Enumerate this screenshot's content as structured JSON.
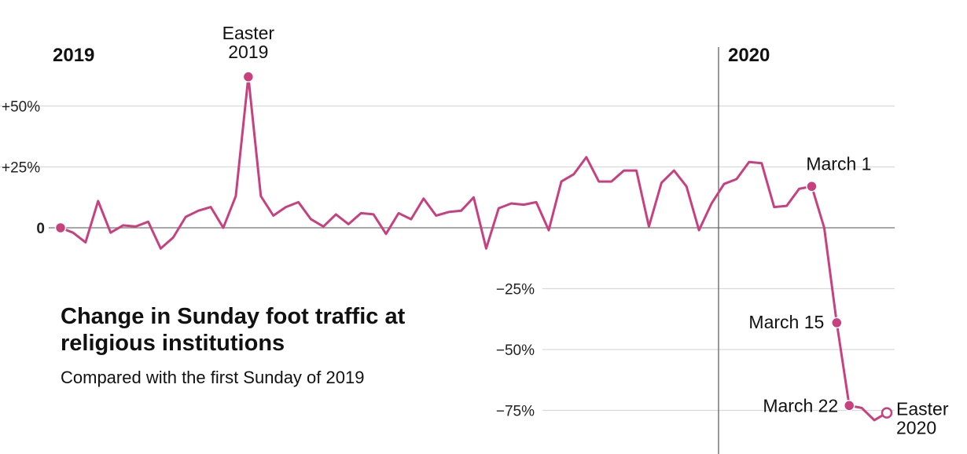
{
  "chart_data": {
    "type": "line",
    "title": "Change in Sunday foot traffic at religious institutions",
    "subtitle": "Compared with the first Sunday of 2019",
    "xlabel": "",
    "ylabel": "",
    "ylim": [
      -90,
      70
    ],
    "y_ticks": [
      {
        "value": 50,
        "label": "+50%"
      },
      {
        "value": 25,
        "label": "+25%"
      },
      {
        "value": 0,
        "label": "0"
      },
      {
        "value": -25,
        "label": "−25%"
      },
      {
        "value": -50,
        "label": "−50%"
      },
      {
        "value": -75,
        "label": "−75%"
      }
    ],
    "year_labels": [
      {
        "index": 0,
        "label": "2019"
      },
      {
        "index": 53,
        "label": "2020"
      }
    ],
    "year_divider_index": 53,
    "series": [
      {
        "name": "Sunday foot traffic change (%)",
        "color": "#c8407e",
        "values": [
          0,
          -2,
          -6,
          11,
          -2,
          1,
          0.5,
          2.5,
          -8.5,
          -4,
          4.5,
          7,
          8.5,
          0,
          13,
          62,
          13,
          5,
          8.5,
          10.5,
          3.5,
          0.5,
          5.5,
          1.5,
          6,
          5.5,
          -2.5,
          6,
          3.5,
          12,
          5,
          6.5,
          7,
          12.5,
          -8.5,
          8,
          10,
          9.5,
          10.5,
          -1,
          19,
          22,
          29,
          19,
          19,
          23.5,
          23.5,
          0.5,
          18.5,
          23.5,
          17,
          -1,
          10,
          18,
          20,
          27,
          26.5,
          8.5,
          9,
          16,
          17,
          0,
          -39,
          -73,
          -74,
          -79,
          -76
        ]
      }
    ],
    "annotations": [
      {
        "index": 15,
        "lines": [
          "Easter",
          "2019"
        ],
        "marker": "filled"
      },
      {
        "index": 60,
        "lines": [
          "March 1"
        ],
        "marker": "filled"
      },
      {
        "index": 62,
        "lines": [
          "March 15"
        ],
        "marker": "filled"
      },
      {
        "index": 63,
        "lines": [
          "March 22"
        ],
        "marker": "filled"
      },
      {
        "index": 66,
        "lines": [
          "Easter",
          "2020"
        ],
        "marker": "open"
      },
      {
        "index": 0,
        "lines": [],
        "marker": "filled"
      }
    ]
  }
}
